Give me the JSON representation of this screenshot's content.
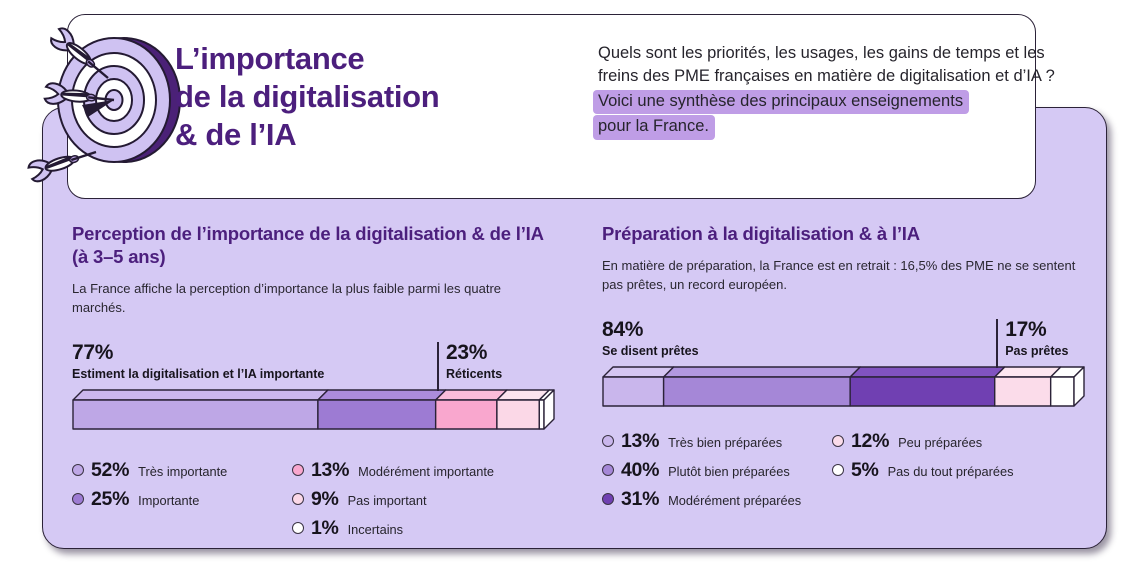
{
  "header": {
    "title_lines": [
      "L’importance",
      "de la digitalisation",
      "& de l’IA"
    ],
    "intro": "Quels sont les priorités, les usages, les gains de temps et les freins des PME françaises en matière de digitalisation et d’IA ?",
    "intro_highlight_lines": [
      "Voici une synthèse des principaux enseignements",
      "pour la France."
    ],
    "illustration_icon": "dartboard-darts-icon"
  },
  "colors": {
    "accent_purple": "#4c1f7d",
    "card_background": "#d5c9f4",
    "outline_dark": "#2b2238",
    "highlight": "#bf9de6",
    "body_text": "#26242c"
  },
  "chart_data": [
    {
      "type": "bar",
      "variant": "horizontal-stacked-3d",
      "title": "Perception de l’importance de la digitalisation & de l’IA (à 3–5 ans)",
      "subtitle": "La France affiche la perception d’importance la plus faible parmi les quatre marchés.",
      "unit": "%",
      "group_left": {
        "value_label": "77%",
        "label": "Estiment la digitalisation et l’IA importante",
        "span": 2
      },
      "group_right": {
        "value_label": "23%",
        "label": "Réticents"
      },
      "segments": [
        {
          "pct": 52,
          "value_label": "52%",
          "label": "Très importante",
          "color": "#bea7e6",
          "color_top": "#cbb7ee"
        },
        {
          "pct": 25,
          "value_label": "25%",
          "label": "Importante",
          "color": "#9d7bd3",
          "color_top": "#ab8cdc"
        },
        {
          "pct": 13,
          "value_label": "13%",
          "label": "Modérément importante",
          "color": "#f9a7ce",
          "color_top": "#fbbcda"
        },
        {
          "pct": 9,
          "value_label": "9%",
          "label": "Pas important",
          "color": "#fbd8e7",
          "color_top": "#fce4ef"
        },
        {
          "pct": 1,
          "value_label": "1%",
          "label": "Incertains",
          "color": "#ffffff",
          "color_top": "#ffffff"
        }
      ]
    },
    {
      "type": "bar",
      "variant": "horizontal-stacked-3d",
      "title": "Préparation à la digitalisation & à l’IA",
      "subtitle": "En matière de préparation, la France est en retrait : 16,5% des PME ne se sentent pas prêtes, un record européen.",
      "unit": "%",
      "group_left": {
        "value_label": "84%",
        "label": "Se disent prêtes",
        "span": 3
      },
      "group_right": {
        "value_label": "17%",
        "label": "Pas prêtes"
      },
      "segments": [
        {
          "pct": 13,
          "value_label": "13%",
          "label": "Très bien préparées",
          "color": "#c9b6ec",
          "color_top": "#d5c6f2"
        },
        {
          "pct": 40,
          "value_label": "40%",
          "label": "Plutôt bien préparées",
          "color": "#a587d7",
          "color_top": "#b298e0"
        },
        {
          "pct": 31,
          "value_label": "31%",
          "label": "Modérément préparées",
          "color": "#7040b2",
          "color_top": "#8153c0"
        },
        {
          "pct": 12,
          "value_label": "12%",
          "label": "Peu préparées",
          "color": "#fbdcea",
          "color_top": "#fde7f1"
        },
        {
          "pct": 5,
          "value_label": "5%",
          "label": "Pas du tout préparées",
          "color": "#ffffff",
          "color_top": "#ffffff"
        }
      ]
    }
  ]
}
